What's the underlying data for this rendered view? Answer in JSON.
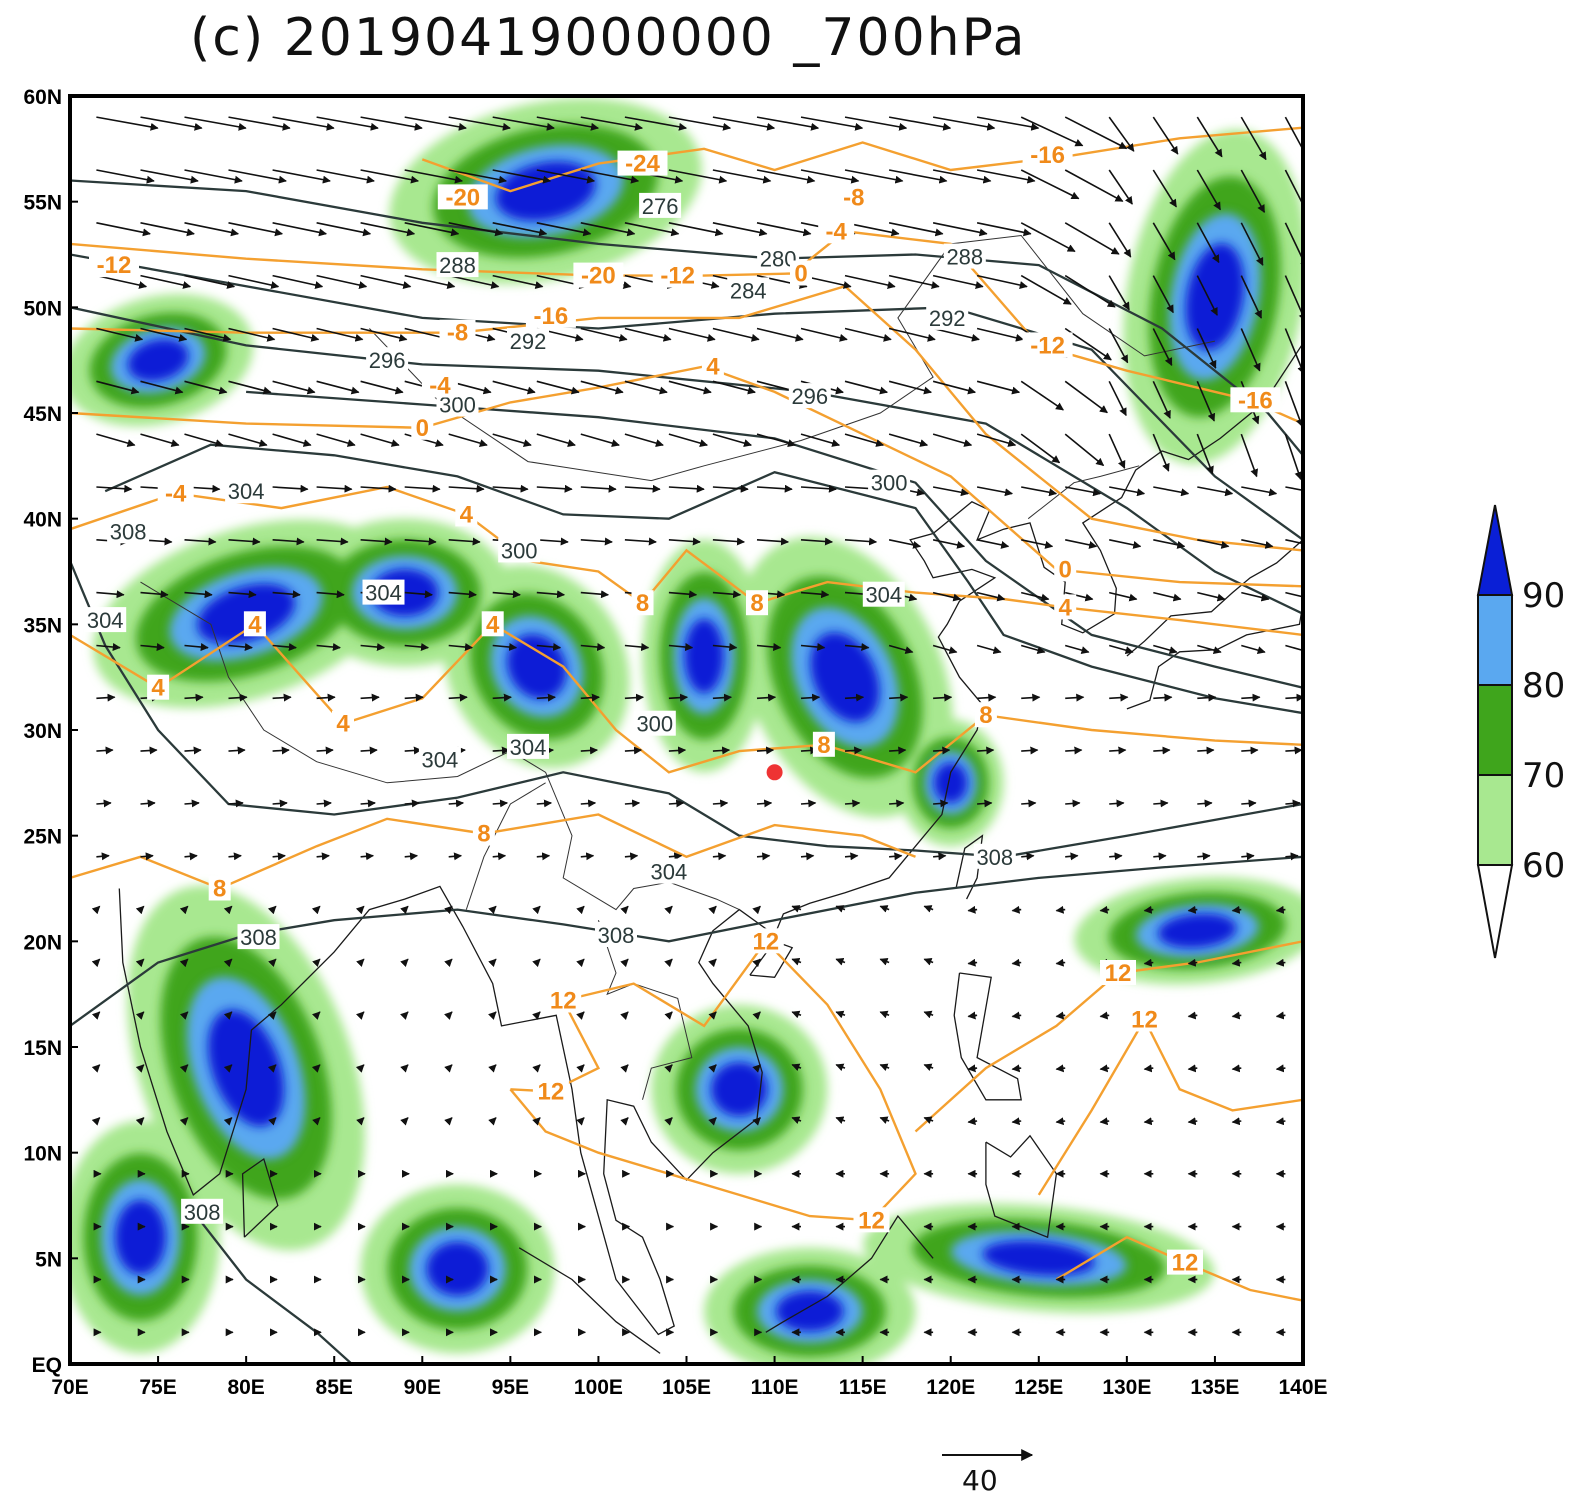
{
  "title": "(c) 20190419000000 _700hPa",
  "map": {
    "lon_range": [
      70,
      140
    ],
    "lat_range": [
      0,
      60
    ],
    "x_ticks": [
      "70E",
      "75E",
      "80E",
      "85E",
      "90E",
      "95E",
      "100E",
      "105E",
      "110E",
      "115E",
      "120E",
      "125E",
      "130E",
      "135E",
      "140E"
    ],
    "y_ticks": [
      "EQ",
      "5N",
      "10N",
      "15N",
      "20N",
      "25N",
      "30N",
      "35N",
      "40N",
      "45N",
      "50N",
      "55N",
      "60N"
    ],
    "colors": {
      "rh_90": "#0a1fd6",
      "rh_80": "#5aa8f0",
      "rh_70": "#3fa51c",
      "rh_60": "#a8e890",
      "theta_contour": "#2b3a3a",
      "temp_contour": "#f4a030",
      "wind_vector": "#111111",
      "station_marker": "#ee3333"
    },
    "colorbar": {
      "labels": [
        "90",
        "80",
        "70",
        "60"
      ]
    },
    "reference_vector": {
      "label": "40"
    },
    "station": {
      "lon": 110.0,
      "lat": 28.0
    },
    "theta_labels": [
      {
        "text": "276",
        "lon": 103.5,
        "lat": 54.8
      },
      {
        "text": "288",
        "lon": 92.0,
        "lat": 52.0
      },
      {
        "text": "280",
        "lon": 110.2,
        "lat": 52.3
      },
      {
        "text": "284",
        "lon": 108.5,
        "lat": 50.8
      },
      {
        "text": "288",
        "lon": 120.8,
        "lat": 52.4
      },
      {
        "text": "292",
        "lon": 96.0,
        "lat": 48.4
      },
      {
        "text": "292",
        "lon": 119.8,
        "lat": 49.5
      },
      {
        "text": "296",
        "lon": 88.0,
        "lat": 47.5
      },
      {
        "text": "296",
        "lon": 112.0,
        "lat": 45.8
      },
      {
        "text": "300",
        "lon": 92.0,
        "lat": 45.4
      },
      {
        "text": "300",
        "lon": 116.5,
        "lat": 41.7
      },
      {
        "text": "304",
        "lon": 80.0,
        "lat": 41.3
      },
      {
        "text": "308",
        "lon": 73.3,
        "lat": 39.4
      },
      {
        "text": "300",
        "lon": 95.5,
        "lat": 38.5
      },
      {
        "text": "304",
        "lon": 87.8,
        "lat": 36.5
      },
      {
        "text": "304",
        "lon": 116.2,
        "lat": 36.4
      },
      {
        "text": "304",
        "lon": 72.0,
        "lat": 35.2
      },
      {
        "text": "300",
        "lon": 103.2,
        "lat": 30.3
      },
      {
        "text": "304",
        "lon": 91.0,
        "lat": 28.6
      },
      {
        "text": "304",
        "lon": 96.0,
        "lat": 29.2
      },
      {
        "text": "308",
        "lon": 122.5,
        "lat": 24.0
      },
      {
        "text": "304",
        "lon": 104.0,
        "lat": 23.3
      },
      {
        "text": "308",
        "lon": 101.0,
        "lat": 20.3
      },
      {
        "text": "308",
        "lon": 80.7,
        "lat": 20.2
      },
      {
        "text": "308",
        "lon": 77.5,
        "lat": 7.2
      }
    ],
    "temp_labels": [
      {
        "text": "-24",
        "lon": 102.5,
        "lat": 56.8
      },
      {
        "text": "-20",
        "lon": 92.3,
        "lat": 55.2
      },
      {
        "text": "-16",
        "lon": 125.5,
        "lat": 57.2
      },
      {
        "text": "-8",
        "lon": 114.5,
        "lat": 55.2
      },
      {
        "text": "-4",
        "lon": 113.5,
        "lat": 53.6
      },
      {
        "text": "-12",
        "lon": 72.5,
        "lat": 52.0
      },
      {
        "text": "-20",
        "lon": 100.0,
        "lat": 51.5
      },
      {
        "text": "-12",
        "lon": 104.5,
        "lat": 51.5
      },
      {
        "text": "-16",
        "lon": 97.3,
        "lat": 49.6
      },
      {
        "text": "0",
        "lon": 111.5,
        "lat": 51.6
      },
      {
        "text": "-12",
        "lon": 125.5,
        "lat": 48.2
      },
      {
        "text": "-16",
        "lon": 137.3,
        "lat": 45.6
      },
      {
        "text": "-8",
        "lon": 92.0,
        "lat": 48.8
      },
      {
        "text": "-4",
        "lon": 91.0,
        "lat": 46.3
      },
      {
        "text": "0",
        "lon": 90.0,
        "lat": 44.3
      },
      {
        "text": "4",
        "lon": 106.5,
        "lat": 47.2
      },
      {
        "text": "-4",
        "lon": 76.0,
        "lat": 41.2
      },
      {
        "text": "4",
        "lon": 92.5,
        "lat": 40.2
      },
      {
        "text": "8",
        "lon": 102.5,
        "lat": 36.0
      },
      {
        "text": "8",
        "lon": 109.0,
        "lat": 36.0
      },
      {
        "text": "0",
        "lon": 126.5,
        "lat": 37.6
      },
      {
        "text": "4",
        "lon": 126.5,
        "lat": 35.8
      },
      {
        "text": "4",
        "lon": 80.5,
        "lat": 35.0
      },
      {
        "text": "4",
        "lon": 94.0,
        "lat": 35.0
      },
      {
        "text": "4",
        "lon": 75.0,
        "lat": 32.0
      },
      {
        "text": "4",
        "lon": 85.5,
        "lat": 30.3
      },
      {
        "text": "8",
        "lon": 112.8,
        "lat": 29.3
      },
      {
        "text": "8",
        "lon": 122.0,
        "lat": 30.7
      },
      {
        "text": "8",
        "lon": 93.5,
        "lat": 25.1
      },
      {
        "text": "8",
        "lon": 78.5,
        "lat": 22.5
      },
      {
        "text": "12",
        "lon": 109.5,
        "lat": 20.0
      },
      {
        "text": "12",
        "lon": 129.5,
        "lat": 18.5
      },
      {
        "text": "12",
        "lon": 131.0,
        "lat": 16.3
      },
      {
        "text": "12",
        "lon": 98.0,
        "lat": 17.2
      },
      {
        "text": "12",
        "lon": 97.3,
        "lat": 12.9
      },
      {
        "text": "12",
        "lon": 115.5,
        "lat": 6.8
      },
      {
        "text": "12",
        "lon": 133.3,
        "lat": 4.8
      }
    ]
  }
}
